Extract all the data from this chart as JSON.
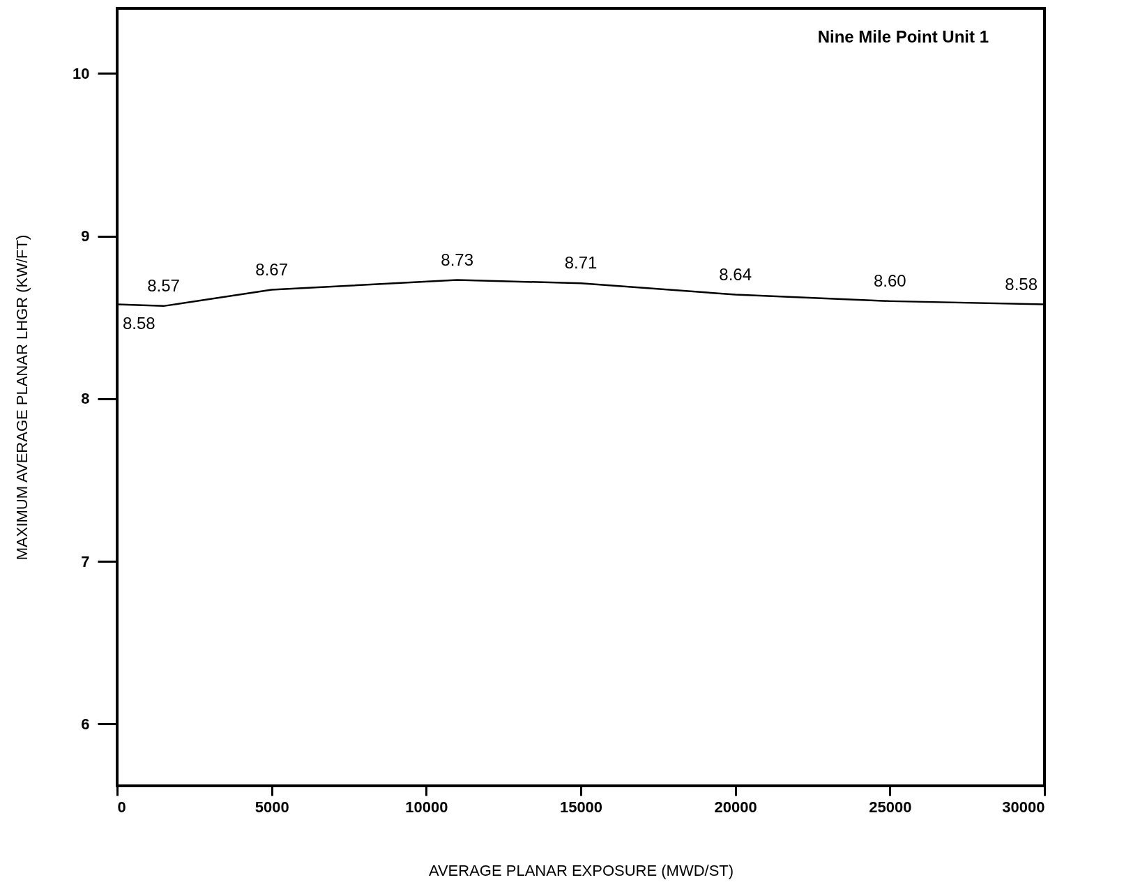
{
  "chart_data": {
    "type": "line",
    "xlabel": "AVERAGE PLANAR EXPOSURE (MWD/ST)",
    "ylabel": "MAXIMUM AVERAGE PLANAR LHGR (KW/FT)",
    "annotations": [
      "Nine Mile Point Unit 1"
    ],
    "x": [
      0,
      1500,
      5000,
      11000,
      15000,
      20000,
      25000,
      30000
    ],
    "values": [
      8.58,
      8.57,
      8.67,
      8.73,
      8.71,
      8.64,
      8.6,
      8.58
    ],
    "value_labels": [
      "8.58",
      "8.57",
      "8.67",
      "8.73",
      "8.71",
      "8.64",
      "8.60",
      "8.58"
    ],
    "color": "#000000",
    "marker": "none",
    "line_style": "solid",
    "grid": false,
    "xlim": [
      0,
      30000
    ],
    "xticks": [
      0,
      5000,
      10000,
      15000,
      20000,
      25000,
      30000
    ],
    "ylim": [
      5.62,
      10.4
    ],
    "yticks": [
      6,
      7,
      8,
      9,
      10
    ]
  }
}
